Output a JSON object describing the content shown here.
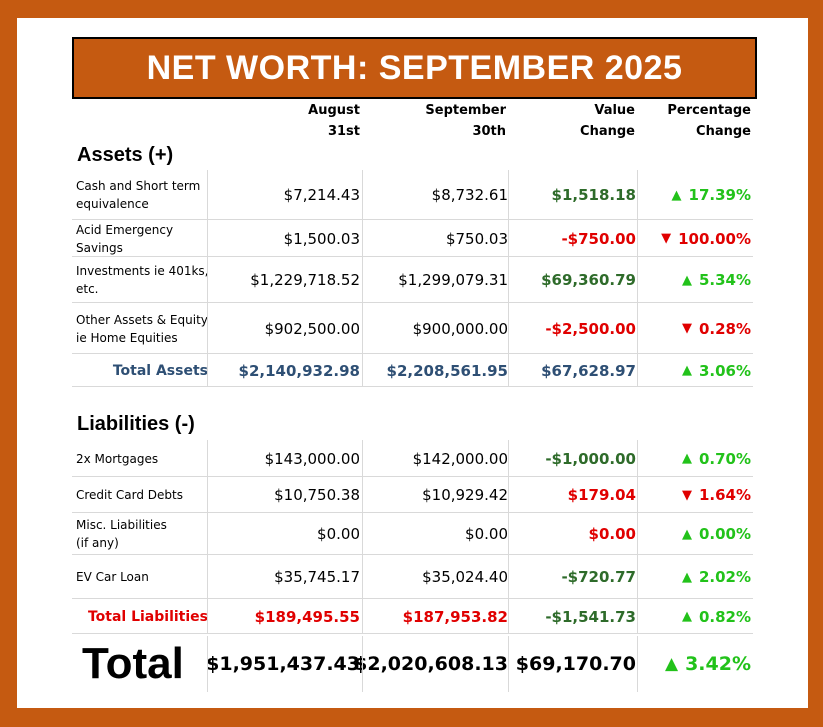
{
  "title": "NET WORTH: SEPTEMBER 2025",
  "headers": {
    "aug_line1": "August",
    "aug_line2": "31st",
    "sep_line1": "September",
    "sep_line2": "30th",
    "val_line1": "Value",
    "val_line2": "Change",
    "pct_line1": "Percentage",
    "pct_line2": "Change"
  },
  "assets": {
    "title": "Assets (+)",
    "rows": [
      {
        "label1": "Cash and Short term",
        "label2": "equivalence",
        "aug": "$7,214.43",
        "sep": "$8,732.61",
        "val": "$1,518.18",
        "pct": "17.39%",
        "dir": "up"
      },
      {
        "label1": "Acid Emergency",
        "label2": "Savings",
        "aug": "$1,500.03",
        "sep": "$750.03",
        "val": "-$750.00",
        "pct": "100.00%",
        "dir": "down"
      },
      {
        "label1": "Investments ie 401ks,",
        "label2": "etc.",
        "aug": "$1,229,718.52",
        "sep": "$1,299,079.31",
        "val": "$69,360.79",
        "pct": "5.34%",
        "dir": "up"
      },
      {
        "label1": "Other Assets & Equity",
        "label2": "ie Home Equities",
        "aug": "$902,500.00",
        "sep": "$900,000.00",
        "val": "-$2,500.00",
        "pct": "0.28%",
        "dir": "down"
      }
    ],
    "total": {
      "label": "Total Assets",
      "aug": "$2,140,932.98",
      "sep": "$2,208,561.95",
      "val": "$67,628.97",
      "pct": "3.06%",
      "dir": "up"
    }
  },
  "liabilities": {
    "title": "Liabilities (-)",
    "rows": [
      {
        "label1": "2x Mortgages",
        "label2": "",
        "aug": "$143,000.00",
        "sep": "$142,000.00",
        "val": "-$1,000.00",
        "pct": "0.70%",
        "dir": "up"
      },
      {
        "label1": "Credit Card Debts",
        "label2": "",
        "aug": "$10,750.38",
        "sep": "$10,929.42",
        "val": "$179.04",
        "pct": "1.64%",
        "dir": "down"
      },
      {
        "label1": "Misc. Liabilities",
        "label2": "(if any)",
        "aug": "$0.00",
        "sep": "$0.00",
        "val": "$0.00",
        "pct": "0.00%",
        "dir": "up"
      },
      {
        "label1": "EV Car Loan",
        "label2": "",
        "aug": "$35,745.17",
        "sep": "$35,024.40",
        "val": "-$720.77",
        "pct": "2.02%",
        "dir": "up"
      }
    ],
    "total": {
      "label": "Total Liabilities",
      "aug": "$189,495.55",
      "sep": "$187,953.82",
      "val": "-$1,541.73",
      "pct": "0.82%",
      "dir": "up"
    }
  },
  "total": {
    "label": "Total",
    "aug": "$1,951,437.43",
    "sep": "$2,020,608.13",
    "val": "$69,170.70",
    "pct": "3.42%",
    "dir": "up"
  },
  "icons": {
    "up": "triangle-up-icon",
    "down": "triangle-down-icon"
  },
  "colors": {
    "frame": "#c55a11",
    "positive_value": "#2e6b2a",
    "negative": "#e00000",
    "positive_pct": "#22c21a",
    "total_assets": "#2e4f74"
  }
}
